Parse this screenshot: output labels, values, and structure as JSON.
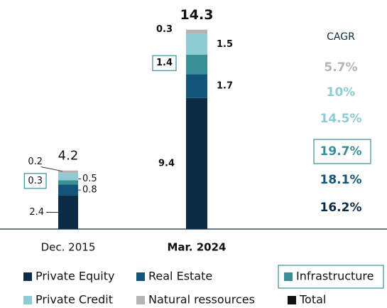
{
  "chart_data": {
    "type": "stacked_bar",
    "categories": [
      "Dec. 2015",
      "Mar. 2024"
    ],
    "ylim": [
      0,
      15
    ],
    "series": [
      {
        "name": "Private Equity",
        "color": "#0c2b45",
        "values": [
          2.4,
          9.4
        ]
      },
      {
        "name": "Real Estate",
        "color": "#13547a",
        "values": [
          0.8,
          1.7
        ]
      },
      {
        "name": "Infrastructure",
        "color": "#3a8e96",
        "values": [
          0.3,
          1.4
        ],
        "highlight": true
      },
      {
        "name": "Private Credit",
        "color": "#8fcbd2",
        "values": [
          0.5,
          1.5
        ]
      },
      {
        "name": "Natural ressources",
        "color": "#b4b4b7",
        "values": [
          0.2,
          0.3
        ]
      }
    ],
    "total_name": "Total",
    "total_color": "#111111",
    "totals": [
      4.2,
      14.3
    ],
    "cagr": {
      "label": "CAGR",
      "values": [
        5.7,
        10,
        14.5,
        19.7,
        18.1,
        16.2
      ],
      "value_labels": [
        "5.7%",
        "10%",
        "14.5%",
        "19.7%",
        "18.1%",
        "16.2%"
      ],
      "colors": [
        "#b4b4b7",
        "#8fcbd2",
        "#8fcbd2",
        "#3a8e96",
        "#13547a",
        "#0c2b45"
      ],
      "highlight": [
        false,
        false,
        false,
        true,
        false,
        false
      ]
    }
  }
}
